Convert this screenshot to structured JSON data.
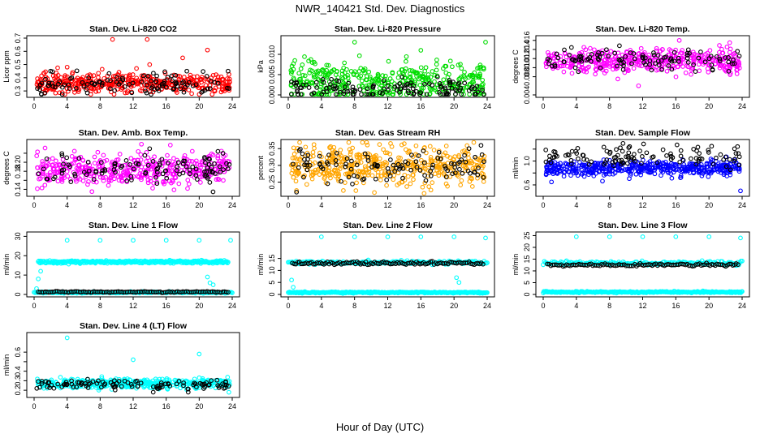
{
  "page": {
    "title": "NWR_140421  Std. Dev. Diagnostics",
    "xlabel": "Hour of Day (UTC)"
  },
  "chart_data": [
    {
      "id": "p1",
      "type": "scatter",
      "title": "Stan. Dev. Li-820 CO2",
      "xlabel": "",
      "ylabel": "Licor ppm",
      "xlim": [
        0,
        24
      ],
      "xticks": [
        0,
        4,
        8,
        12,
        16,
        20,
        24
      ],
      "ylim": [
        0.27,
        0.7
      ],
      "yticks": [
        0.3,
        0.4,
        0.5,
        0.6,
        0.7
      ],
      "ytick_labels": [
        "0.3",
        "0.4",
        "0.5",
        "0.6",
        "0.7"
      ],
      "series": [
        {
          "color": "#ff0000",
          "count": 420,
          "center": 0.36,
          "spread": 0.035,
          "outliers": [
            [
              9.5,
              0.69
            ],
            [
              13.7,
              0.69
            ],
            [
              21,
              0.61
            ],
            [
              14,
              0.5
            ],
            [
              4,
              0.48
            ],
            [
              18,
              0.55
            ],
            [
              12.4,
              0.47
            ]
          ]
        },
        {
          "color": "#000000",
          "count": 110,
          "center": 0.35,
          "spread": 0.04,
          "outliers": [
            [
              2,
              0.45
            ],
            [
              23.5,
              0.45
            ],
            [
              18.5,
              0.45
            ]
          ]
        }
      ]
    },
    {
      "id": "p2",
      "type": "scatter",
      "title": "Stan. Dev. Li-820 Pressure",
      "xlabel": "",
      "ylabel": "kPa",
      "xlim": [
        0,
        24
      ],
      "xticks": [
        0,
        4,
        8,
        12,
        16,
        20,
        24
      ],
      "ylim": [
        0,
        0.014
      ],
      "yticks": [
        0,
        0.005,
        0.01
      ],
      "ytick_labels": [
        "0.000",
        "0.005",
        "0.010"
      ],
      "series": [
        {
          "color": "#00dd00",
          "count": 420,
          "center": 0.0035,
          "spread": 0.0025,
          "outliers": [
            [
              8,
              0.013
            ],
            [
              16,
              0.011
            ],
            [
              23.8,
              0.013
            ]
          ]
        },
        {
          "color": "#000000",
          "count": 130,
          "center": 0.0015,
          "spread": 0.0015,
          "outliers": []
        }
      ]
    },
    {
      "id": "p3",
      "type": "scatter",
      "title": "Stan. Dev. Li-820 Temp.",
      "xlabel": "",
      "ylabel": "degrees C",
      "xlim": [
        0,
        24
      ],
      "xticks": [
        0,
        4,
        8,
        12,
        16,
        20,
        24
      ],
      "ylim": [
        0.004,
        0.0165
      ],
      "yticks": [
        0.004,
        0.008,
        0.01,
        0.012,
        0.014,
        0.016
      ],
      "ytick_labels": [
        "0.004",
        "0.008",
        "0.010",
        "0.012",
        "0.014",
        "0.016"
      ],
      "series": [
        {
          "color": "#ff00ff",
          "count": 430,
          "center": 0.0115,
          "spread": 0.0013,
          "outliers": [
            [
              11.5,
              0.006
            ],
            [
              9,
              0.0075
            ],
            [
              22.5,
              0.0155
            ]
          ]
        },
        {
          "color": "#000000",
          "count": 110,
          "center": 0.0118,
          "spread": 0.0012,
          "outliers": []
        }
      ]
    },
    {
      "id": "p4",
      "type": "scatter",
      "title": "Stan. Dev. Amb. Box Temp.",
      "xlabel": "",
      "ylabel": "degrees C",
      "xlim": [
        0,
        24
      ],
      "xticks": [
        0,
        4,
        8,
        12,
        16,
        20,
        24
      ],
      "ylim": [
        0.13,
        0.245
      ],
      "yticks": [
        0.14,
        0.16,
        0.18,
        0.2,
        0.22
      ],
      "ytick_labels": [
        "0.14",
        "",
        "0.18",
        "0.20",
        ""
      ],
      "series": [
        {
          "color": "#ff00ff",
          "count": 430,
          "center": 0.185,
          "spread": 0.018,
          "outliers": [
            [
              13,
              0.24
            ],
            [
              16.5,
              0.238
            ],
            [
              7,
              0.135
            ]
          ]
        },
        {
          "color": "#000000",
          "count": 110,
          "center": 0.183,
          "spread": 0.016,
          "outliers": [
            [
              14,
              0.23
            ]
          ]
        }
      ]
    },
    {
      "id": "p5",
      "type": "scatter",
      "title": "Stan. Dev. Gas Stream RH",
      "xlabel": "",
      "ylabel": "percent",
      "xlim": [
        0,
        24
      ],
      "xticks": [
        0,
        4,
        8,
        12,
        16,
        20,
        24
      ],
      "ylim": [
        0.215,
        0.37
      ],
      "yticks": [
        0.25,
        0.3,
        0.35
      ],
      "ytick_labels": [
        "0.25",
        "0.30",
        "0.35"
      ],
      "series": [
        {
          "color": "#ffa500",
          "count": 460,
          "center": 0.3,
          "spread": 0.028,
          "outliers": [
            [
              14,
              0.365
            ],
            [
              1,
              0.225
            ]
          ]
        },
        {
          "color": "#000000",
          "count": 110,
          "center": 0.3,
          "spread": 0.025,
          "outliers": [
            [
              1,
              0.22
            ]
          ]
        }
      ]
    },
    {
      "id": "p6",
      "type": "scatter",
      "title": "Stan. Dev. Sample Flow",
      "xlabel": "",
      "ylabel": "ml/min",
      "xlim": [
        0,
        24
      ],
      "xticks": [
        0,
        4,
        8,
        12,
        16,
        20,
        24
      ],
      "ylim": [
        0.45,
        1.32
      ],
      "yticks": [
        0.6,
        0.8,
        1.0,
        1.2
      ],
      "ytick_labels": [
        "0.6",
        "",
        "1.0",
        ""
      ],
      "series": [
        {
          "color": "#0000ff",
          "count": 460,
          "center": 0.88,
          "spread": 0.06,
          "outliers": [
            [
              23.8,
              0.5
            ],
            [
              1,
              0.65
            ]
          ]
        },
        {
          "color": "#000000",
          "count": 110,
          "center": 1.08,
          "spread": 0.1,
          "outliers": []
        }
      ]
    },
    {
      "id": "p7",
      "type": "scatter",
      "title": "Stan. Dev. Line 1 Flow",
      "xlabel": "",
      "ylabel": "ml/min",
      "xlim": [
        0,
        24
      ],
      "xticks": [
        0,
        4,
        8,
        12,
        16,
        20,
        24
      ],
      "ylim": [
        0,
        31
      ],
      "yticks": [
        0,
        10,
        20,
        30
      ],
      "ytick_labels": [
        "0",
        "10",
        "20",
        "30"
      ],
      "series": [
        {
          "color": "#00ffff",
          "band": true,
          "x_from": 0.5,
          "x_to": 23.5,
          "y": 16.8,
          "count": 300,
          "spread": 0.4,
          "outliers": [
            [
              4,
              28
            ],
            [
              8,
              28
            ],
            [
              12,
              28
            ],
            [
              16,
              28
            ],
            [
              20,
              28
            ],
            [
              23.8,
              28
            ],
            [
              0.3,
              3
            ],
            [
              0.5,
              8
            ],
            [
              0.8,
              12
            ],
            [
              21,
              9
            ],
            [
              21.3,
              6
            ],
            [
              21.7,
              5
            ]
          ]
        },
        {
          "color": "#00ffff",
          "band": true,
          "x_from": 0,
          "x_to": 24,
          "y": 1.0,
          "count": 200,
          "spread": 0.2,
          "outliers": []
        },
        {
          "color": "#000000",
          "band": true,
          "x_from": 0.5,
          "x_to": 23.5,
          "y": 1.3,
          "count": 110,
          "spread": 0.15,
          "outliers": []
        }
      ]
    },
    {
      "id": "p8",
      "type": "scatter",
      "title": "Stan. Dev. Line 2 Flow",
      "xlabel": "",
      "ylabel": "ml/min",
      "xlim": [
        0,
        24
      ],
      "xticks": [
        0,
        4,
        8,
        12,
        16,
        20,
        24
      ],
      "ylim": [
        0,
        25
      ],
      "yticks": [
        0,
        5,
        10,
        15
      ],
      "ytick_labels": [
        "0",
        "5",
        "10",
        "15"
      ],
      "series": [
        {
          "color": "#00ffff",
          "band": true,
          "x_from": 0,
          "x_to": 24,
          "y": 0.8,
          "count": 300,
          "spread": 0.15,
          "outliers": [
            [
              4,
              24
            ],
            [
              8,
              24
            ],
            [
              12,
              24
            ],
            [
              16,
              24
            ],
            [
              20,
              24
            ],
            [
              23.8,
              23.5
            ],
            [
              0.4,
              6
            ],
            [
              0.6,
              3
            ],
            [
              20.3,
              7
            ],
            [
              20.6,
              5
            ]
          ]
        },
        {
          "color": "#00ffff",
          "band": true,
          "x_from": 0,
          "x_to": 24,
          "y": 13.3,
          "count": 200,
          "spread": 0.35,
          "outliers": []
        },
        {
          "color": "#000000",
          "band": true,
          "x_from": 0.5,
          "x_to": 23.5,
          "y": 13.0,
          "count": 110,
          "spread": 0.3,
          "outliers": []
        }
      ]
    },
    {
      "id": "p9",
      "type": "scatter",
      "title": "Stan. Dev. Line 3 Flow",
      "xlabel": "",
      "ylabel": "ml/min",
      "xlim": [
        0,
        24
      ],
      "xticks": [
        0,
        4,
        8,
        12,
        16,
        20,
        24
      ],
      "ylim": [
        0,
        25.5
      ],
      "yticks": [
        0,
        5,
        10,
        15,
        20,
        25
      ],
      "ytick_labels": [
        "0",
        "5",
        "10",
        "15",
        "20",
        "25"
      ],
      "series": [
        {
          "color": "#00ffff",
          "band": true,
          "x_from": 0,
          "x_to": 24,
          "y": 1.0,
          "count": 300,
          "spread": 0.15,
          "outliers": [
            [
              4,
              24.5
            ],
            [
              8,
              24.5
            ],
            [
              12,
              24.5
            ],
            [
              16,
              24.5
            ],
            [
              20,
              24.5
            ],
            [
              23.8,
              24
            ]
          ]
        },
        {
          "color": "#00ffff",
          "band": true,
          "x_from": 0,
          "x_to": 24,
          "y": 13.3,
          "count": 180,
          "spread": 0.4,
          "outliers": []
        },
        {
          "color": "#000000",
          "band": true,
          "x_from": 0.5,
          "x_to": 23.5,
          "y": 12.6,
          "count": 110,
          "spread": 0.3,
          "outliers": []
        }
      ]
    },
    {
      "id": "p10",
      "type": "scatter",
      "title": "Stan. Dev. Line 4 (LT) Flow",
      "xlabel": "",
      "ylabel": "ml/min",
      "xlim": [
        0,
        24
      ],
      "xticks": [
        0,
        4,
        8,
        12,
        16,
        20,
        24
      ],
      "ylim": [
        0.15,
        0.78
      ],
      "yticks": [
        0.2,
        0.3,
        0.4,
        0.5,
        0.6
      ],
      "ytick_labels": [
        "0.2",
        "0.3",
        "0.4",
        "",
        "0.6"
      ],
      "series": [
        {
          "color": "#00ffff",
          "count": 440,
          "center": 0.27,
          "spread": 0.025,
          "outliers": [
            [
              4,
              0.75
            ],
            [
              12,
              0.52
            ],
            [
              20,
              0.58
            ]
          ]
        },
        {
          "color": "#000000",
          "count": 110,
          "center": 0.26,
          "spread": 0.03,
          "outliers": []
        }
      ]
    }
  ]
}
